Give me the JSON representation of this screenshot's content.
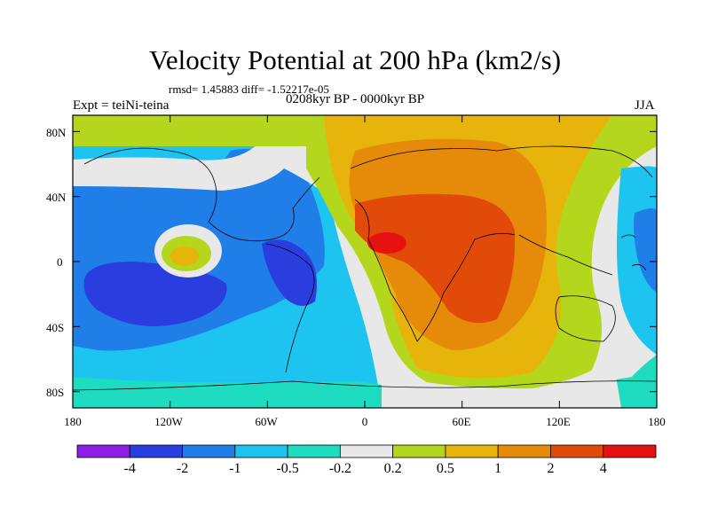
{
  "figure": {
    "title": "Velocity Potential at 200 hPa (km2/s)",
    "stats": "rmsd= 1.45883 diff= -1.52217e-05",
    "experiment": "Expt = teiNi-teina",
    "period": "0208kyr BP - 0000kyr BP",
    "season": "JJA"
  },
  "map": {
    "lat_labels": [
      "80N",
      "40N",
      "0",
      "40S",
      "80S"
    ],
    "lon_labels": [
      "180",
      "120W",
      "60W",
      "0",
      "60E",
      "120E",
      "180"
    ],
    "lon_range": [
      -180,
      180
    ],
    "lat_range": [
      -90,
      90
    ],
    "coastlines": true
  },
  "colorbar": {
    "levels": [
      "-4",
      "-2",
      "-1",
      "-0.5",
      "-0.2",
      "0.2",
      "0.5",
      "1",
      "2",
      "4"
    ],
    "colors": [
      "#8c1ee6",
      "#2a3ee0",
      "#1f7ee8",
      "#1ec4f0",
      "#1edcc0",
      "#e8e8e8",
      "#b4d71e",
      "#e6b40a",
      "#e68a0a",
      "#e14a08",
      "#e61212"
    ]
  }
}
